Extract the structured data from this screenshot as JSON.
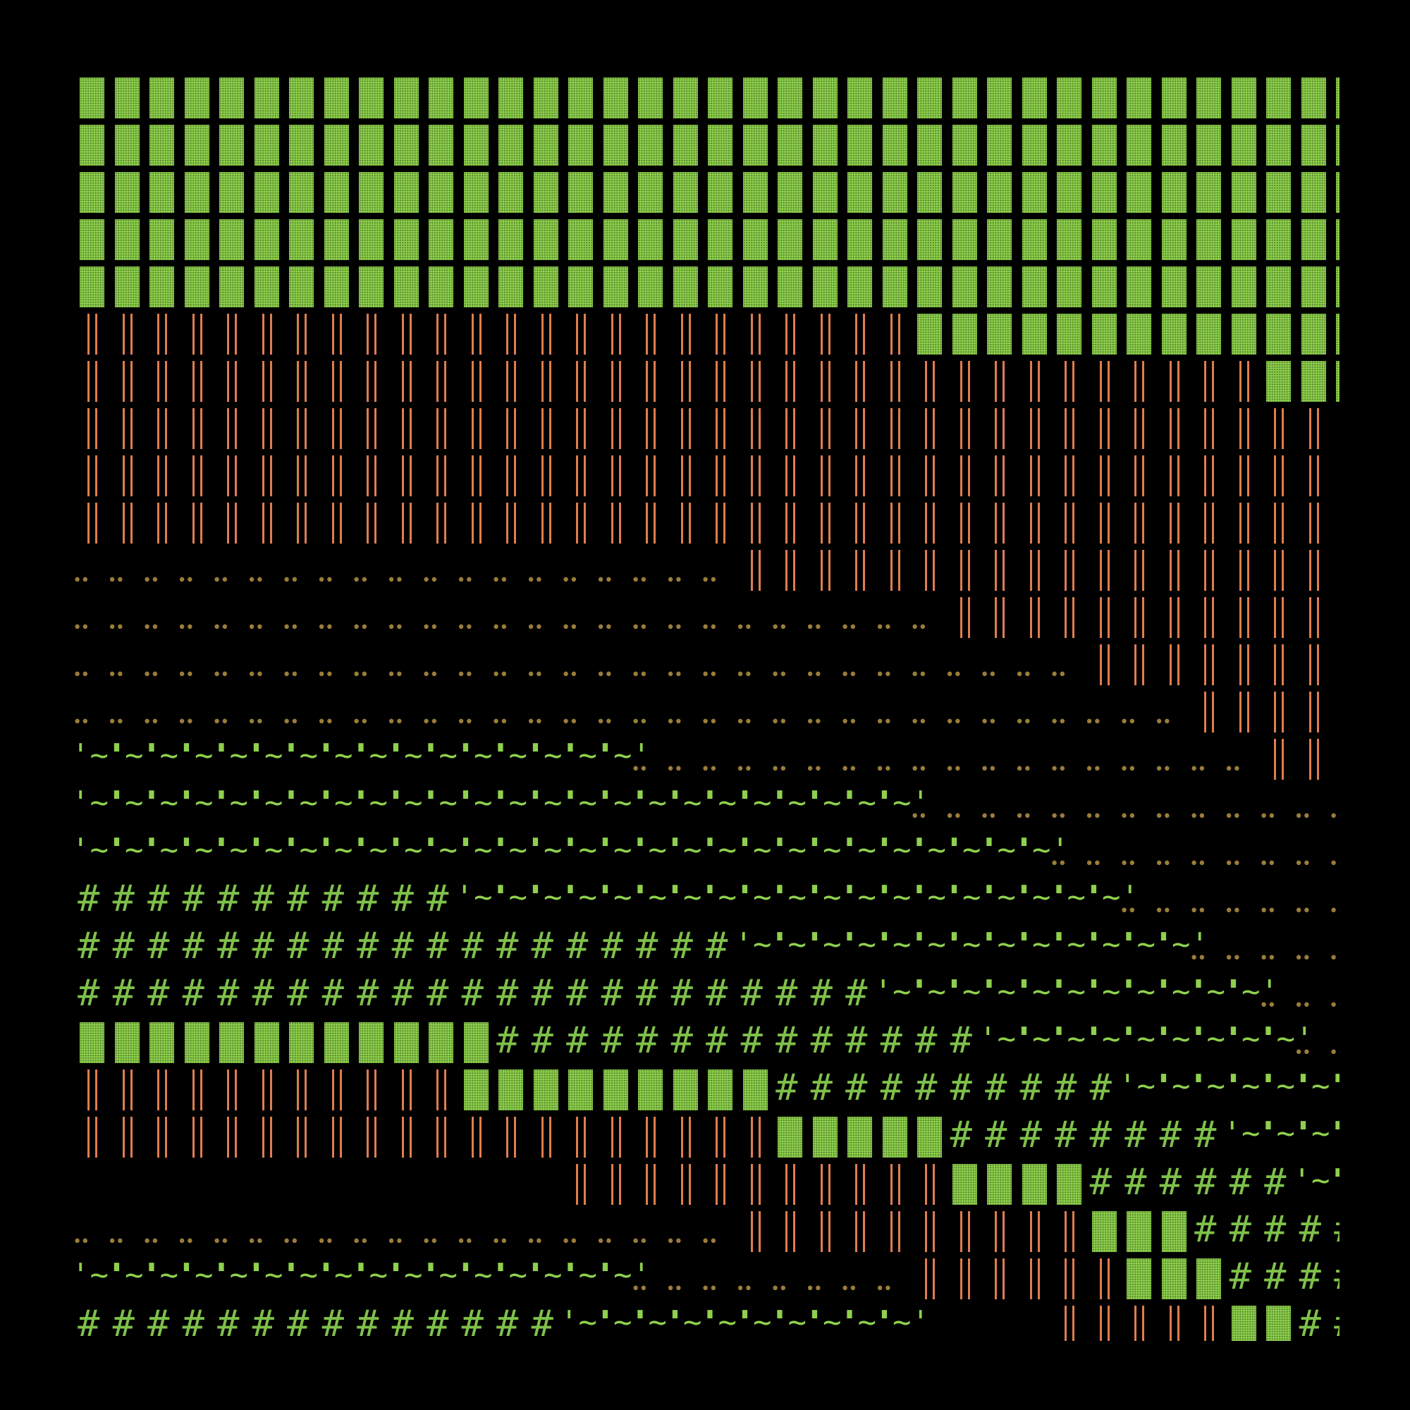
{
  "colors": {
    "background": "#000000",
    "grass": "#8fd04e",
    "fence": "#e07d4e",
    "dirt": "#9a7d3a",
    "hash": "#7fc04a"
  },
  "glyphs": {
    "wave": "'~'",
    "dots": "••",
    "hash": "#"
  },
  "legend_codes": {
    "G": "grass-tile",
    "F": "fence-tile",
    "D": "dirt-tile",
    "W": "water-wave-tile",
    "H": "hash-tile",
    ".": "empty"
  },
  "map": [
    "GGGGGGGGGGGGGGGGGGGGGGGGGGGGGGGGGGGGG",
    "GGGGGGGGGGGGGGGGGGGGGGGGGGGGGGGGGGGGG",
    "GGGGGGGGGGGGGGGGGGGGGGGGGGGGGGGGGGGGG",
    "GGGGGGGGGGGGGGGGGGGGGGGGGGGGGGGGGGGGG",
    "GGGGGGGGGGGGGGGGGGGGGGGGGGGGGGGGGGGGG",
    "FFFFFFFFFFFFFFFFFFFFFFFFGGGGGGGGGGGGG",
    "FFFFFFFFFFFFFFFFFFFFFFFFFFFFFFFFFFGGG",
    "FFFFFFFFFFFFFFFFFFFFFFFFFFFFFFFFFFFF.",
    "FFFFFFFFFFFFFFFFFFFFFFFFFFFFFFFFFFFF.",
    "FFFFFFFFFFFFFFFFFFFFFFFFFFFFFFFFFFFF.",
    "DDDDDDDDDDDDDDDDDDDFFFFFFFFFFFFFFFFF.",
    "DDDDDDDDDDDDDDDDDDDDDDDDDFFFFFFFFFFF.",
    "DDDDDDDDDDDDDDDDDDDDDDDDDDDDDFFFFFFF.",
    "DDDDDDDDDDDDDDDDDDDDDDDDDDDDDDDDFFFF.",
    "WWWWWWWWWWWWWWWWDDDDDDDDDDDDDDDDDDFF.",
    "WWWWWWWWWWWWWWWWWWWWWWWWDDDDDDDDDDDDD",
    "WWWWWWWWWWWWWWWWWWWWWWWWWWWWDDDDDDDDD",
    "HHHHHHHHHHHWWWWWWWWWWWWWWWWWWWDDDDDDD",
    "HHHHHHHHHHHHHHHHHHHWWWWWWWWWWWWWDDDDD",
    "HHHHHHHHHHHHHHHHHHHHHHHWWWWWWWWWWWDDD",
    "GGGGGGGGGGGGHHHHHHHHHHHHHHWWWWWWWWWDD",
    "FFFFFFFFFFFGGGGGGGGGHHHHHHHHHHWWWWWWW",
    "FFFFFFFFFFFFFFFFFFFFGGGGGHHHHHHHHWWWW",
    "..............FFFFFFFFFFFGGGGHHHHHHWW",
    "DDDDDDDDDDDDDDDDDDDFFFFFFFFFFGGGHHHHH",
    "WWWWWWWWWWWWWWWWDDDDDDDDFFFFFFGGGHHHH",
    "HHHHHHHHHHHHHHWWWWWWWWWW....FFFFFGGHH"
  ]
}
